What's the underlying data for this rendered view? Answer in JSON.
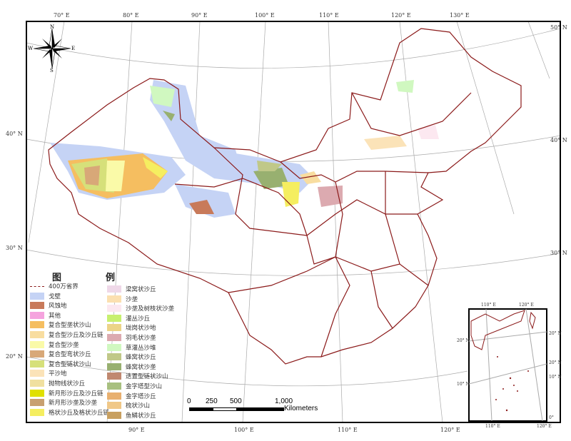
{
  "map": {
    "graticule_labels": {
      "top": [
        "70° E",
        "80° E",
        "90° E",
        "100° E",
        "110° E",
        "120° E",
        "130° E"
      ],
      "bottom": [
        "90° E",
        "100° E",
        "110° E",
        "120° E"
      ],
      "left": [
        "40° N",
        "30° N",
        "20° N"
      ],
      "right": [
        "50° N",
        "40° N",
        "30° N"
      ]
    },
    "compass": {
      "n": "N",
      "s": "S",
      "e": "E",
      "w": "W"
    },
    "boundary_color": "#8b1a1a",
    "gobi_color": "#c5d3f5"
  },
  "inset": {
    "top": [
      "110° E",
      "120° E"
    ],
    "bottom": [
      "110° E",
      "120° E"
    ],
    "left": [
      "20° N",
      "10° N"
    ],
    "right": [
      "20° N",
      "20° N",
      "10° N",
      "0°"
    ]
  },
  "legend": {
    "title_left": "图",
    "title_right": "例",
    "items_left": [
      {
        "label": "400万省界",
        "color": "#8b1a1a",
        "type": "line"
      },
      {
        "label": "戈壁",
        "color": "#c5d3f5"
      },
      {
        "label": "风蚀地",
        "color": "#c87a5a"
      },
      {
        "label": "其他",
        "color": "#f5a3de"
      },
      {
        "label": "复合型垄状沙山",
        "color": "#f5be60"
      },
      {
        "label": "复合型沙丘及沙丘链",
        "color": "#f8dda0"
      },
      {
        "label": "复合型沙垄",
        "color": "#fafaa8"
      },
      {
        "label": "复合型弯状沙丘",
        "color": "#d8a878"
      },
      {
        "label": "复合型链状沙山",
        "color": "#d6e07a"
      },
      {
        "label": "平沙地",
        "color": "#fbe3b8"
      },
      {
        "label": "抛物线状沙丘",
        "color": "#f0e0a0"
      },
      {
        "label": "新月形沙丘及沙丘链",
        "color": "#e0e000"
      },
      {
        "label": "新月形沙垄及沙垄",
        "color": "#c8a070"
      },
      {
        "label": "格状沙丘及格状沙丘链",
        "color": "#f5ee60"
      }
    ],
    "items_right": [
      {
        "label": "梁窝状沙丘",
        "color": "#efd8e8"
      },
      {
        "label": "沙垄",
        "color": "#fbe0b0"
      },
      {
        "label": "沙垄及树枝状沙垄",
        "color": "#fce8f0"
      },
      {
        "label": "灌丛沙丘",
        "color": "#c8f070"
      },
      {
        "label": "垅岗状沙地",
        "color": "#ecd488"
      },
      {
        "label": "羽毛状沙垄",
        "color": "#dcaab0"
      },
      {
        "label": "草灌丛沙堆",
        "color": "#d0f8c0"
      },
      {
        "label": "蜂窝状沙丘",
        "color": "#c0c888"
      },
      {
        "label": "蜂窝状沙垄",
        "color": "#98b070"
      },
      {
        "label": "迭置型链状沙山",
        "color": "#c08870"
      },
      {
        "label": "金字塔型沙山",
        "color": "#a8c080"
      },
      {
        "label": "金字塔沙丘",
        "color": "#e8b070"
      },
      {
        "label": "梳状沙山",
        "color": "#f0c888"
      },
      {
        "label": "鱼鳞状沙丘",
        "color": "#c8a060"
      }
    ]
  },
  "scale_bar": {
    "ticks": [
      "0",
      "250",
      "500",
      "1,000"
    ],
    "unit": "Kilometers"
  }
}
